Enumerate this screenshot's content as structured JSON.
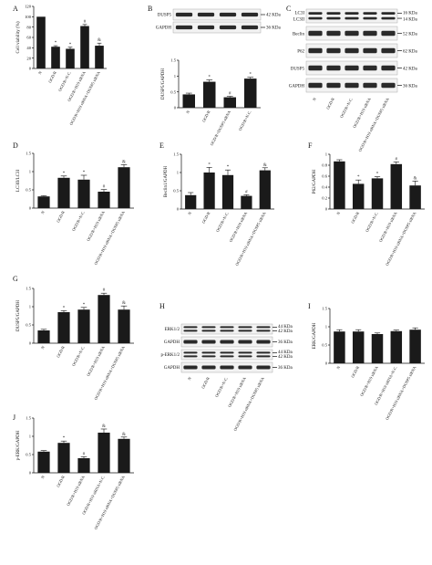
{
  "chart_data": [
    {
      "panel": "A",
      "type": "bar",
      "categories": [
        "N",
        "OGD/R",
        "OGD/R+N.C.",
        "OGD/R+H19 siRNA",
        "OGD/R+H19 siRNA+DUSP5 siRNA"
      ],
      "values": [
        100,
        42,
        38,
        82,
        44
      ],
      "errors": [
        0,
        2,
        3,
        3,
        5
      ],
      "significance": [
        "",
        "*",
        "*",
        "#",
        "&"
      ],
      "ylabel": "Cell viability (%)",
      "ylim": [
        0,
        120
      ],
      "yticks": [
        0,
        20,
        40,
        60,
        80,
        100,
        120
      ]
    },
    {
      "panel": "B",
      "type": "bar",
      "categories": [
        "N",
        "OGD/R",
        "OGD/R+DUSP5 siRNA",
        "OGD/R+N.C."
      ],
      "values": [
        0.42,
        0.82,
        0.33,
        0.92
      ],
      "errors": [
        0.04,
        0.06,
        0.03,
        0.04
      ],
      "significance": [
        "",
        "*",
        "#",
        "*"
      ],
      "ylabel": "DUSP5/GAPDH",
      "ylim": [
        0,
        1.5
      ],
      "yticks": [
        0,
        0.5,
        1.0,
        1.5
      ],
      "blots": {
        "rows": [
          {
            "left": "DUSP5",
            "right": "42 KDa"
          },
          {
            "left": "GAPDH",
            "right": "36 KDa"
          }
        ],
        "lanes": 4
      }
    },
    {
      "panel": "C",
      "type": "blot",
      "categories": [
        "N",
        "OGD/R",
        "OGD/R+N.C.",
        "OGD/R+H19 siRNA",
        "OGD/R+H19 siRNA+DUSP5 siRNA"
      ],
      "blots": {
        "rows": [
          {
            "left": "LC3I",
            "left2": "LC3II",
            "right": "16 KDa",
            "right2": "14 KDa"
          },
          {
            "left": "Beclin",
            "right": "52 KDa"
          },
          {
            "left": "P62",
            "right": "62 KDa"
          },
          {
            "left": "DUSP5",
            "right": "42 KDa"
          },
          {
            "left": "GAPDH",
            "right": "36 KDa"
          }
        ],
        "lanes": 5
      }
    },
    {
      "panel": "D",
      "type": "bar",
      "categories": [
        "N",
        "OGD/R",
        "OGD/R+N.C.",
        "OGD/R+H19 siRNA",
        "OGD/R+H19 siRNA+DUSP5 siRNA"
      ],
      "values": [
        0.32,
        0.83,
        0.78,
        0.45,
        1.12
      ],
      "errors": [
        0.02,
        0.05,
        0.12,
        0.06,
        0.07
      ],
      "significance": [
        "",
        "*",
        "*",
        "#",
        "&"
      ],
      "ylabel": "LC3II/LC3I",
      "ylim": [
        0,
        1.5
      ],
      "yticks": [
        0,
        0.5,
        1.0,
        1.5
      ]
    },
    {
      "panel": "E",
      "type": "bar",
      "categories": [
        "N",
        "OGD/R",
        "OGD/R+N.C.",
        "OGD/R+H19 siRNA",
        "OGD/R+H19 siRNA+DUSP5 siRNA"
      ],
      "values": [
        0.38,
        1.0,
        0.93,
        0.36,
        1.06
      ],
      "errors": [
        0.07,
        0.14,
        0.14,
        0.03,
        0.07
      ],
      "significance": [
        "",
        "*",
        "*",
        "#",
        "&"
      ],
      "ylabel": "Beclin1/GAPDH",
      "ylim": [
        0,
        1.5
      ],
      "yticks": [
        0,
        0.5,
        1.0,
        1.5
      ]
    },
    {
      "panel": "F",
      "type": "bar",
      "categories": [
        "N",
        "OGD/R",
        "OGD/R+N.C.",
        "OGD/R+H19 siRNA",
        "OGD/R+H19 siRNA+DUSP5 siRNA"
      ],
      "values": [
        0.87,
        0.46,
        0.56,
        0.82,
        0.43
      ],
      "errors": [
        0.03,
        0.07,
        0.03,
        0.04,
        0.08
      ],
      "significance": [
        "",
        "*",
        "*",
        "#",
        "&"
      ],
      "ylabel": "P62/GAPDH",
      "ylim": [
        0,
        1.0
      ],
      "yticks": [
        0,
        0.2,
        0.4,
        0.6,
        0.8,
        1.0
      ]
    },
    {
      "panel": "G",
      "type": "bar",
      "categories": [
        "N",
        "OGD/R",
        "OGD/R+N.C.",
        "OGD/R+H19 siRNA",
        "OGD/R+H19 siRNA+DUSP5 siRNA"
      ],
      "values": [
        0.35,
        0.85,
        0.92,
        1.32,
        0.92
      ],
      "errors": [
        0.03,
        0.04,
        0.06,
        0.05,
        0.1
      ],
      "significance": [
        "",
        "*",
        "*",
        "#",
        "&"
      ],
      "ylabel": "DUSP5/GAPDH",
      "ylim": [
        0,
        1.5
      ],
      "yticks": [
        0,
        0.5,
        1.0,
        1.5
      ]
    },
    {
      "panel": "H",
      "type": "blot",
      "categories": [
        "N",
        "OGD/R",
        "OGD/R+N.C.",
        "OGD/R+H19 siRNA",
        "OGD/R+H19 siRNA+DUSP5 siRNA"
      ],
      "blots": {
        "rows": [
          {
            "left": "ERK1/2",
            "right": "44 KDa",
            "right2": "42 KDa"
          },
          {
            "left": "GAPDH",
            "right": "36 KDa"
          },
          {
            "left": "p-ERK1/2",
            "right": "44 KDa",
            "right2": "42 KDa"
          },
          {
            "left": "GAPDH",
            "right": "36 KDa"
          }
        ],
        "lanes": 5
      }
    },
    {
      "panel": "I",
      "type": "bar",
      "categories": [
        "N",
        "OGD/R",
        "OGD/R+H19 siRNA",
        "OGD/R+H19 siRNA+N.C.",
        "OGD/R+H19 siRNA+DUSP5 siRNA"
      ],
      "values": [
        0.87,
        0.87,
        0.8,
        0.88,
        0.92
      ],
      "errors": [
        0.05,
        0.05,
        0.03,
        0.03,
        0.05
      ],
      "significance": [
        "",
        "",
        "",
        "",
        ""
      ],
      "ylabel": "ERK/GAPDH",
      "ylim": [
        0,
        1.5
      ],
      "yticks": [
        0,
        0.5,
        1.0,
        1.5
      ]
    },
    {
      "panel": "J",
      "type": "bar",
      "categories": [
        "N",
        "OGD/R",
        "OGD/R+H19 siRNA",
        "OGD/R+H19 siRNA+N.C.",
        "OGD/R+H19 siRNA+DUSP5 siRNA"
      ],
      "values": [
        0.58,
        0.82,
        0.4,
        1.1,
        0.93
      ],
      "errors": [
        0.03,
        0.05,
        0.04,
        0.1,
        0.05
      ],
      "significance": [
        "",
        "*",
        "#",
        "&",
        "&"
      ],
      "ylabel": "p-ERK/GAPDH",
      "ylim": [
        0,
        1.5
      ],
      "yticks": [
        0,
        0.5,
        1.0,
        1.5
      ]
    }
  ]
}
